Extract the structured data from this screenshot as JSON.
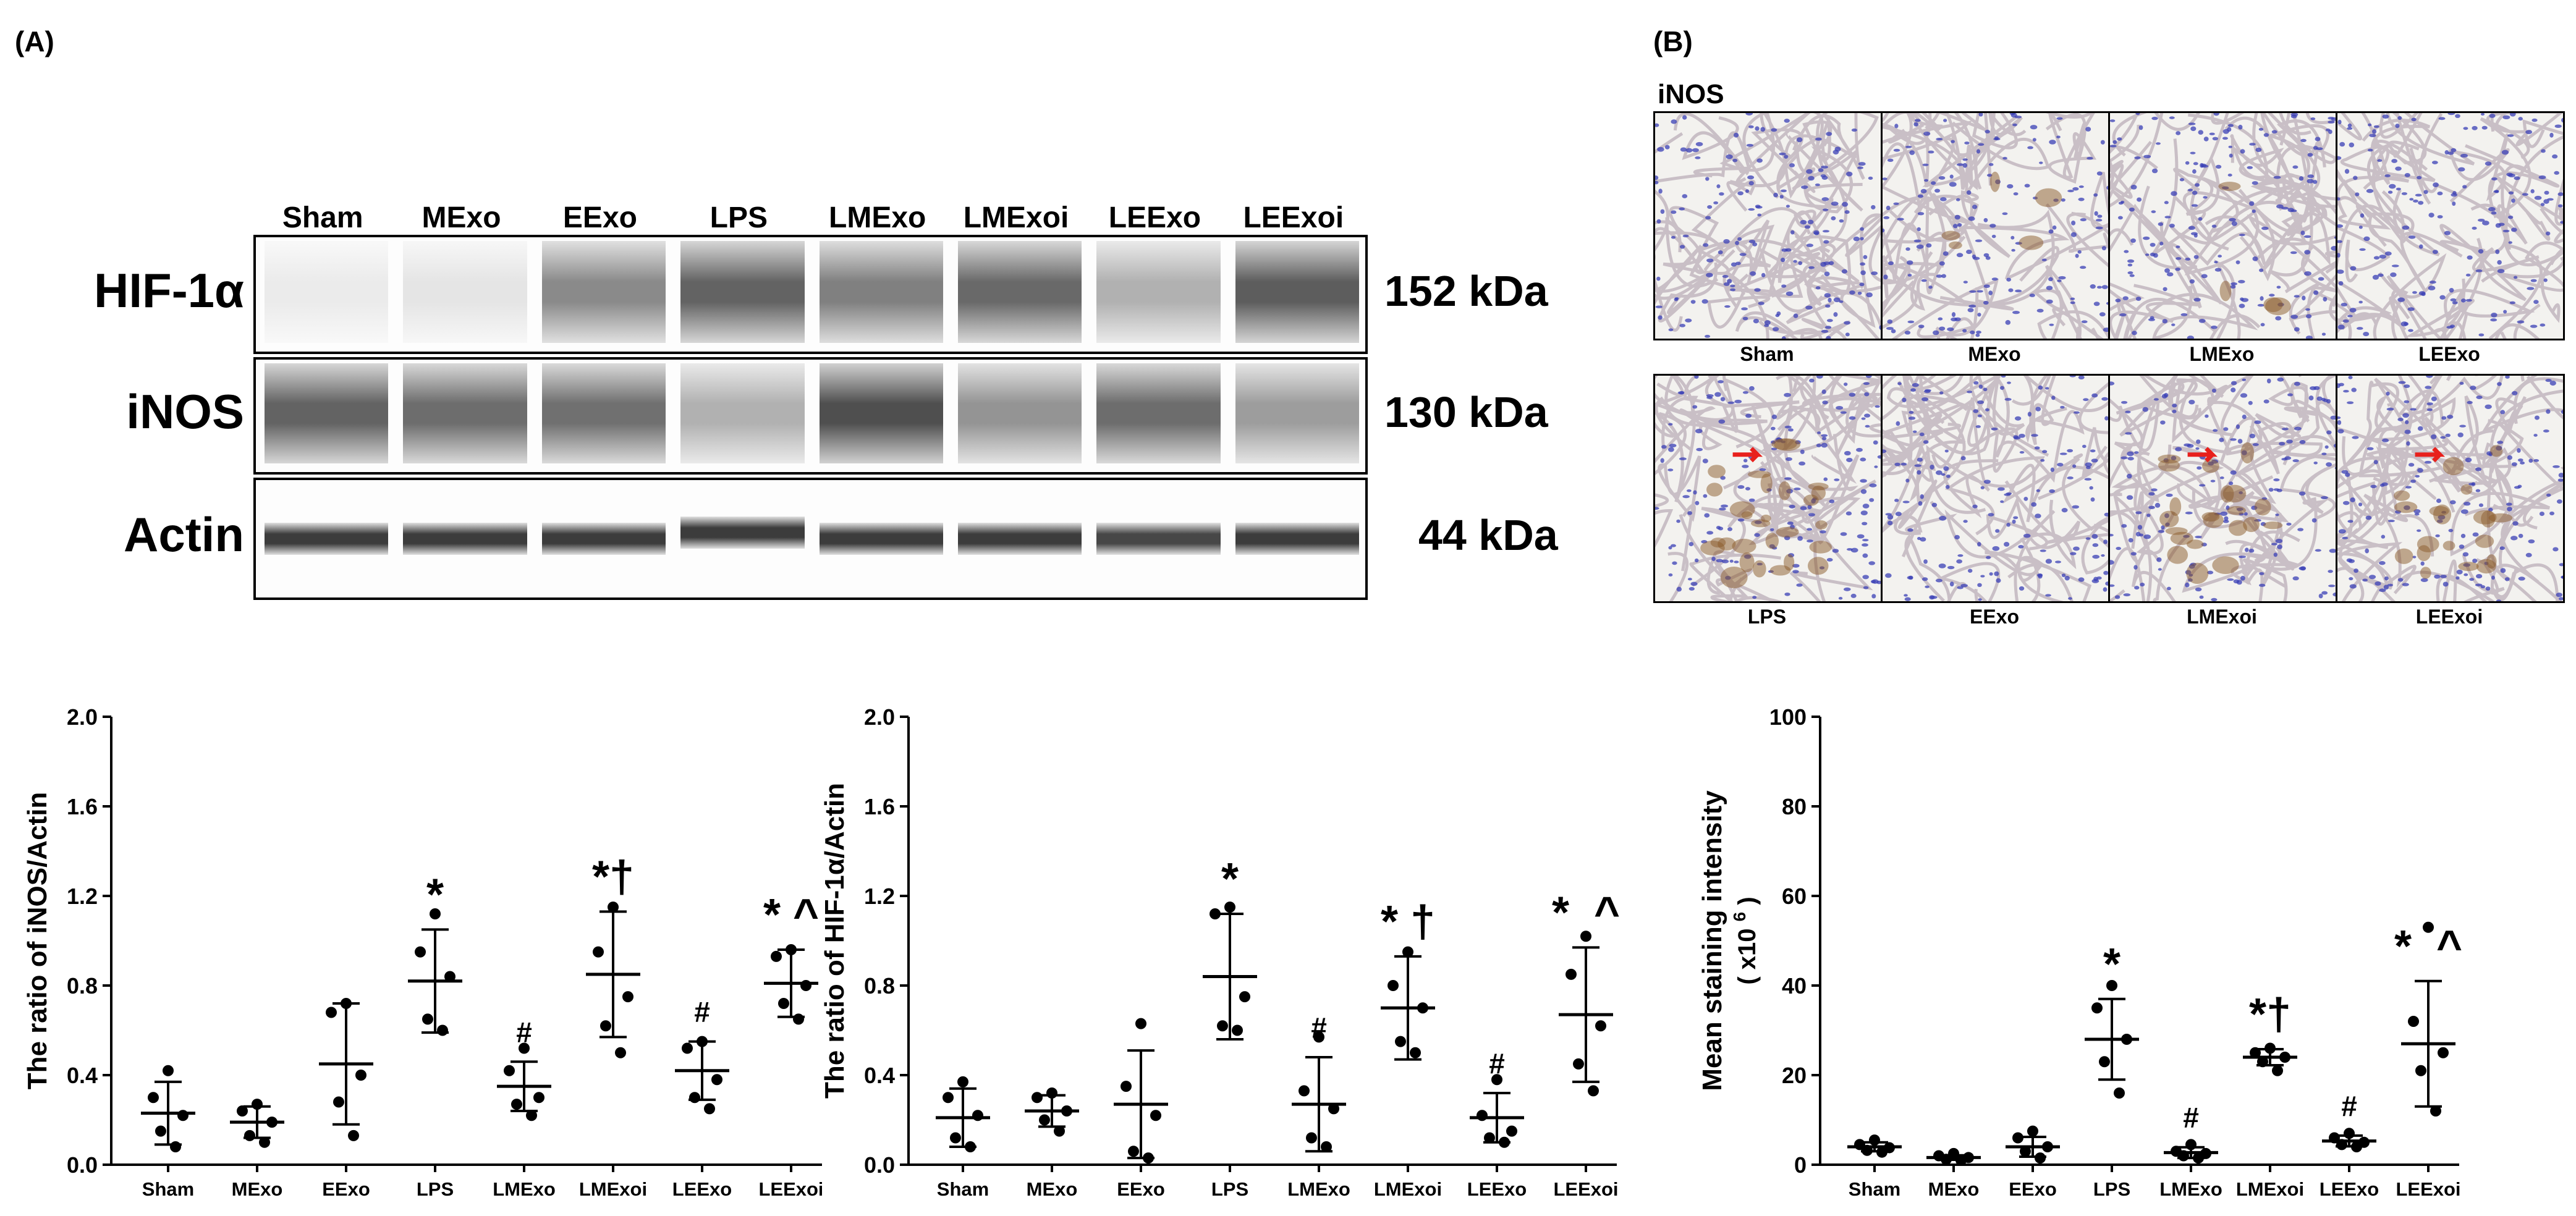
{
  "panel_labels": {
    "a": "(A)",
    "b": "(B)"
  },
  "western_blot": {
    "lanes": [
      "Sham",
      "MExo",
      "EExo",
      "LPS",
      "LMExo",
      "LMExoi",
      "LEExo",
      "LEExoi"
    ],
    "rows": [
      {
        "protein": "HIF-1α",
        "size": "152 kDa",
        "intensity": [
          0.05,
          0.08,
          0.55,
          0.75,
          0.6,
          0.72,
          0.35,
          0.78
        ]
      },
      {
        "protein": "iNOS",
        "size": "130 kDa",
        "intensity": [
          0.75,
          0.7,
          0.68,
          0.35,
          0.85,
          0.5,
          0.7,
          0.45
        ]
      },
      {
        "protein": "Actin",
        "size": "44 kDa",
        "intensity": [
          0.85,
          0.85,
          0.85,
          0.85,
          0.85,
          0.85,
          0.8,
          0.85
        ]
      }
    ]
  },
  "ihc": {
    "title": "iNOS",
    "tiles": [
      {
        "label": "Sham",
        "stain": 0
      },
      {
        "label": "MExo",
        "stain": 0.15
      },
      {
        "label": "LMExo",
        "stain": 0.1
      },
      {
        "label": "LEExo",
        "stain": 0
      },
      {
        "label": "LPS",
        "stain": 0.8
      },
      {
        "label": "EExo",
        "stain": 0
      },
      {
        "label": "LMExoi",
        "stain": 0.6
      },
      {
        "label": "LEExoi",
        "stain": 0.55
      }
    ]
  },
  "chart_data": [
    {
      "type": "scatter",
      "xlabel": "",
      "ylabel": "The ratio of iNOS/Actin",
      "ylim": [
        0,
        2.0
      ],
      "yticks": [
        "0.0",
        "0.4",
        "0.8",
        "1.2",
        "1.6",
        "2.0"
      ],
      "categories": [
        "Sham",
        "MExo",
        "EExo",
        "LPS",
        "LMExo",
        "LMExoi",
        "LEExo",
        "LEExoi"
      ],
      "points": [
        [
          0.42,
          0.3,
          0.22,
          0.15,
          0.08
        ],
        [
          0.27,
          0.24,
          0.19,
          0.13,
          0.1
        ],
        [
          0.72,
          0.68,
          0.4,
          0.28,
          0.13
        ],
        [
          1.12,
          0.95,
          0.84,
          0.65,
          0.6
        ],
        [
          0.52,
          0.42,
          0.3,
          0.27,
          0.22
        ],
        [
          1.15,
          0.95,
          0.75,
          0.62,
          0.5
        ],
        [
          0.55,
          0.52,
          0.38,
          0.3,
          0.25
        ],
        [
          0.96,
          0.93,
          0.8,
          0.72,
          0.65
        ]
      ],
      "means": [
        0.23,
        0.19,
        0.45,
        0.82,
        0.35,
        0.85,
        0.42,
        0.81
      ],
      "sd": [
        0.14,
        0.07,
        0.27,
        0.23,
        0.11,
        0.28,
        0.13,
        0.15
      ],
      "annotations": [
        "",
        "",
        "",
        "*",
        "#",
        "*†",
        "#",
        "* ^"
      ]
    },
    {
      "type": "scatter",
      "xlabel": "",
      "ylabel": "The ratio of HIF-1α/Actin",
      "ylim": [
        0,
        2.0
      ],
      "yticks": [
        "0.0",
        "0.4",
        "0.8",
        "1.2",
        "1.6",
        "2.0"
      ],
      "categories": [
        "Sham",
        "MExo",
        "EExo",
        "LPS",
        "LMExo",
        "LMExoi",
        "LEExo",
        "LEExoi"
      ],
      "points": [
        [
          0.37,
          0.3,
          0.22,
          0.12,
          0.08
        ],
        [
          0.32,
          0.3,
          0.24,
          0.2,
          0.15
        ],
        [
          0.63,
          0.35,
          0.22,
          0.06,
          0.03
        ],
        [
          1.15,
          1.12,
          0.75,
          0.62,
          0.6
        ],
        [
          0.57,
          0.33,
          0.25,
          0.12,
          0.08
        ],
        [
          0.95,
          0.8,
          0.7,
          0.55,
          0.5
        ],
        [
          0.38,
          0.22,
          0.15,
          0.12,
          0.1
        ],
        [
          1.02,
          0.85,
          0.62,
          0.45,
          0.33
        ]
      ],
      "means": [
        0.21,
        0.24,
        0.27,
        0.84,
        0.27,
        0.7,
        0.21,
        0.67
      ],
      "sd": [
        0.13,
        0.07,
        0.24,
        0.28,
        0.21,
        0.23,
        0.11,
        0.3
      ],
      "annotations": [
        "",
        "",
        "",
        "*",
        "#",
        "* †",
        "#",
        "*  ^"
      ]
    },
    {
      "type": "scatter",
      "xlabel": "",
      "ylabel": "Mean staining intensity",
      "ylabel2": "( x10",
      "ylabel2_sup": "6",
      "ylabel2_end": ")",
      "ylim": [
        0,
        100
      ],
      "yticks": [
        "0",
        "20",
        "40",
        "60",
        "80",
        "100"
      ],
      "categories": [
        "Sham",
        "MExo",
        "EExo",
        "LPS",
        "LMExo",
        "LMExoi",
        "LEExo",
        "LEExoi"
      ],
      "points": [
        [
          5.5,
          4.5,
          3.8,
          3.2,
          2.8
        ],
        [
          2.5,
          2.0,
          1.6,
          1.2,
          1.0
        ],
        [
          7.5,
          6.0,
          4.0,
          3.0,
          1.5
        ],
        [
          40,
          35,
          28,
          23,
          16
        ],
        [
          4.5,
          3.0,
          2.5,
          2.0,
          1.5
        ],
        [
          26,
          25,
          24,
          23,
          21
        ],
        [
          7,
          6,
          5,
          4.5,
          4
        ],
        [
          53,
          32,
          25,
          21,
          12
        ]
      ],
      "means": [
        4.0,
        1.6,
        4.0,
        28,
        2.7,
        24,
        5.3,
        27
      ],
      "sd": [
        1.0,
        0.5,
        2.2,
        9,
        1.2,
        1.8,
        1.2,
        14
      ],
      "annotations": [
        "",
        "",
        "",
        "*",
        "#",
        "*†",
        "#",
        "*  ^"
      ]
    }
  ],
  "colors": {
    "axis": "#000000",
    "arrow": "#e8201c",
    "nucleus": "#3a3fb5",
    "brown": "#8a5a2a"
  }
}
